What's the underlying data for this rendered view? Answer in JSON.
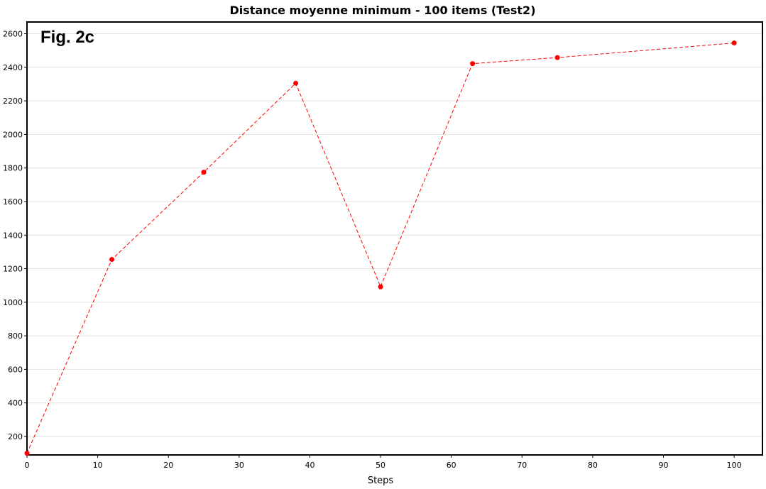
{
  "chart_data": {
    "type": "line",
    "title": "Distance moyenne minimum - 100 items (Test2)",
    "annotation": "Fig. 2c",
    "xlabel": "Steps",
    "ylabel": "",
    "xlim": [
      0,
      104
    ],
    "ylim": [
      90,
      2670
    ],
    "xticks": [
      0,
      10,
      20,
      30,
      40,
      50,
      60,
      70,
      80,
      90,
      100
    ],
    "yticks": [
      200,
      400,
      600,
      800,
      1000,
      1200,
      1400,
      1600,
      1800,
      2000,
      2200,
      2400,
      2600
    ],
    "grid": "horizontal",
    "series": [
      {
        "color": "#ff0000",
        "line_style": "dashed",
        "marker": "circle",
        "x": [
          0,
          12,
          25,
          38,
          50,
          63,
          75,
          100
        ],
        "y": [
          100,
          1255,
          1775,
          2305,
          1092,
          2422,
          2458,
          2545
        ]
      }
    ]
  }
}
